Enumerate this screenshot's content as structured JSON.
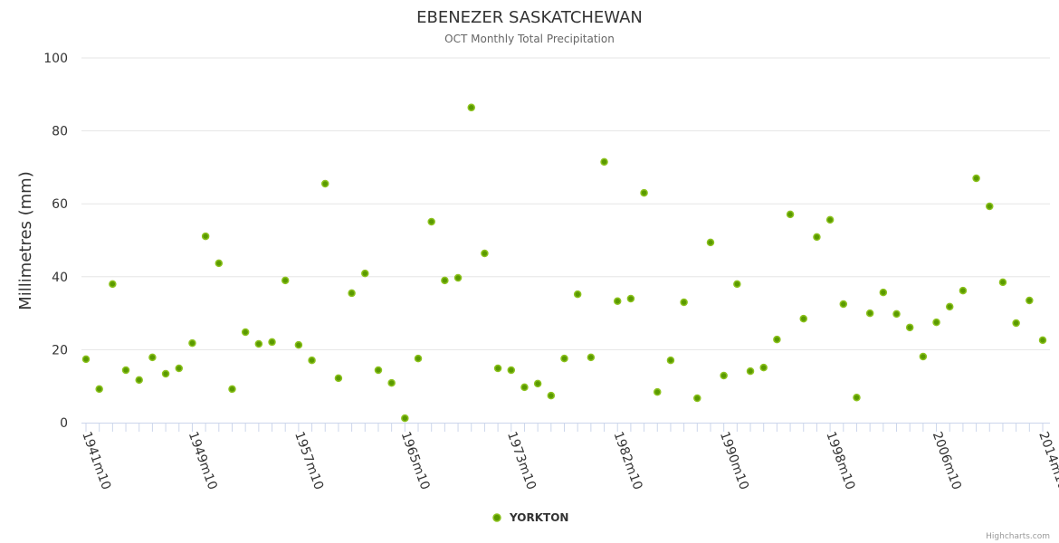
{
  "chart_data": {
    "type": "scatter",
    "title": "EBENEZER SASKATCHEWAN",
    "subtitle": "OCT Monthly Total Precipitation",
    "ylabel": "Millimetres (mm)",
    "xlabel": "",
    "ylim": [
      0,
      100
    ],
    "yticks": [
      0,
      20,
      40,
      60,
      80,
      100
    ],
    "grid": true,
    "legend": {
      "position": "bottom-center",
      "entries": [
        "YORKTON"
      ]
    },
    "credits": "Highcharts.com",
    "colors": {
      "point_fill": "#5a9a00",
      "point_stroke": "#8cc21e",
      "grid": "#e6e6e6",
      "axis": "#ccd6eb"
    },
    "categories": [
      "1941m10",
      "1942m10",
      "1943m10",
      "1944m10",
      "1945m10",
      "1946m10",
      "1947m10",
      "1948m10",
      "1949m10",
      "1950m10",
      "1951m10",
      "1952m10",
      "1953m10",
      "1954m10",
      "1955m10",
      "1956m10",
      "1957m10",
      "1958m10",
      "1959m10",
      "1960m10",
      "1961m10",
      "1962m10",
      "1963m10",
      "1964m10",
      "1965m10",
      "1966m10",
      "1967m10",
      "1968m10",
      "1969m10",
      "1970m10",
      "1971m10",
      "1972m10",
      "1973m10",
      "1974m10",
      "1975m10",
      "1977m10",
      "1978m10",
      "1979m10",
      "1980m10",
      "1981m10",
      "1982m10",
      "1983m10",
      "1984m10",
      "1985m10",
      "1986m10",
      "1987m10",
      "1988m10",
      "1989m10",
      "1990m10",
      "1991m10",
      "1992m10",
      "1993m10",
      "1994m10",
      "1995m10",
      "1996m10",
      "1997m10",
      "1998m10",
      "1999m10",
      "2000m10",
      "2001m10",
      "2002m10",
      "2003m10",
      "2004m10",
      "2005m10",
      "2006m10",
      "2007m10",
      "2008m10",
      "2009m10",
      "2010m10",
      "2011m10",
      "2012m10",
      "2013m10",
      "2014m10"
    ],
    "series": [
      {
        "name": "YORKTON",
        "values": [
          17.4,
          9.2,
          38.0,
          14.4,
          11.7,
          17.9,
          13.4,
          14.9,
          21.8,
          51.1,
          43.7,
          9.2,
          24.8,
          21.6,
          22.1,
          39.0,
          21.3,
          17.1,
          65.5,
          12.2,
          35.5,
          40.9,
          14.4,
          10.9,
          1.2,
          17.6,
          55.1,
          39.0,
          39.7,
          86.4,
          46.4,
          14.9,
          14.4,
          9.7,
          10.7,
          7.4,
          17.6,
          35.2,
          17.9,
          71.5,
          33.3,
          34.0,
          63.0,
          8.4,
          17.1,
          33.0,
          6.7,
          49.4,
          12.9,
          38.0,
          14.1,
          15.1,
          22.8,
          57.1,
          28.5,
          50.9,
          55.6,
          32.5,
          6.9,
          30.0,
          35.7,
          29.8,
          26.1,
          18.1,
          27.5,
          31.8,
          36.2,
          67.0,
          59.3,
          38.5,
          27.3,
          33.5,
          22.6
        ]
      }
    ]
  }
}
